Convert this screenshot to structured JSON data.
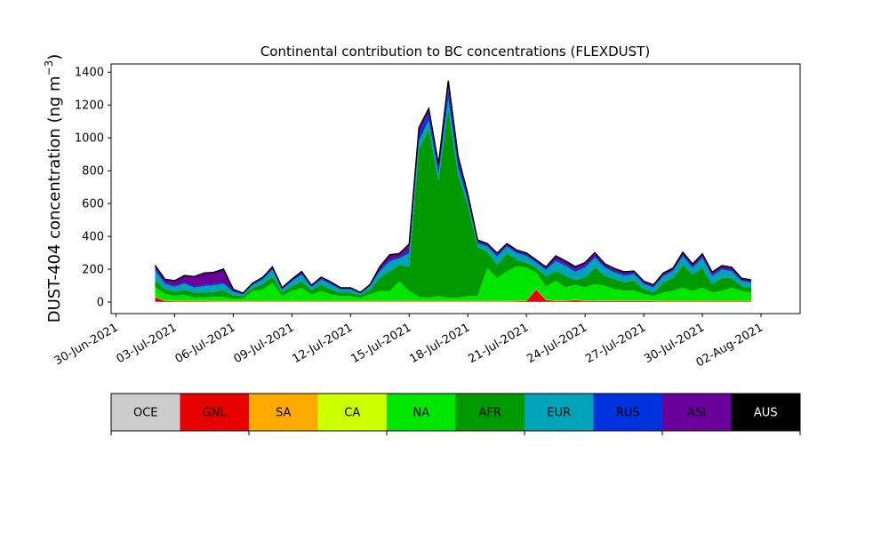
{
  "chart_data": {
    "type": "area",
    "title": "Continental contribution to BC concentrations (FLEXDUST)",
    "ylabel_main": "DUST-404 concentration (ng m",
    "ylabel_exp": "−3",
    "ylabel_close": ")",
    "xlabel": "",
    "ylim": [
      -70,
      1450
    ],
    "yticks": [
      0,
      200,
      400,
      600,
      800,
      1000,
      1200,
      1400
    ],
    "xlim": [
      "2021-06-29T18:00",
      "2021-08-04T00:00"
    ],
    "xtick_labels": [
      "30-Jun-2021",
      "03-Jul-2021",
      "06-Jul-2021",
      "09-Jul-2021",
      "12-Jul-2021",
      "15-Jul-2021",
      "18-Jul-2021",
      "21-Jul-2021",
      "24-Jul-2021",
      "27-Jul-2021",
      "30-Jul-2021",
      "02-Aug-2021"
    ],
    "xtick_dates": [
      "2021-06-30",
      "2021-07-03",
      "2021-07-06",
      "2021-07-09",
      "2021-07-12",
      "2021-07-15",
      "2021-07-18",
      "2021-07-21",
      "2021-07-24",
      "2021-07-27",
      "2021-07-30",
      "2021-08-02"
    ],
    "stacked": true,
    "grid": false,
    "legend_placement": "below",
    "x": [
      "2021-07-02T00:00",
      "2021-07-02T12:00",
      "2021-07-03T00:00",
      "2021-07-03T12:00",
      "2021-07-04T00:00",
      "2021-07-04T12:00",
      "2021-07-05T00:00",
      "2021-07-05T12:00",
      "2021-07-06T00:00",
      "2021-07-06T12:00",
      "2021-07-07T00:00",
      "2021-07-07T12:00",
      "2021-07-08T00:00",
      "2021-07-08T12:00",
      "2021-07-09T00:00",
      "2021-07-09T12:00",
      "2021-07-10T00:00",
      "2021-07-10T12:00",
      "2021-07-11T00:00",
      "2021-07-11T12:00",
      "2021-07-12T00:00",
      "2021-07-12T12:00",
      "2021-07-13T00:00",
      "2021-07-13T12:00",
      "2021-07-14T00:00",
      "2021-07-14T12:00",
      "2021-07-15T00:00",
      "2021-07-15T12:00",
      "2021-07-16T00:00",
      "2021-07-16T12:00",
      "2021-07-17T00:00",
      "2021-07-17T12:00",
      "2021-07-18T00:00",
      "2021-07-18T12:00",
      "2021-07-19T00:00",
      "2021-07-19T12:00",
      "2021-07-20T00:00",
      "2021-07-20T12:00",
      "2021-07-21T00:00",
      "2021-07-21T12:00",
      "2021-07-22T00:00",
      "2021-07-22T12:00",
      "2021-07-23T00:00",
      "2021-07-23T12:00",
      "2021-07-24T00:00",
      "2021-07-24T12:00",
      "2021-07-25T00:00",
      "2021-07-25T12:00",
      "2021-07-26T00:00",
      "2021-07-26T12:00",
      "2021-07-27T00:00",
      "2021-07-27T12:00",
      "2021-07-28T00:00",
      "2021-07-28T12:00",
      "2021-07-29T00:00",
      "2021-07-29T12:00",
      "2021-07-30T00:00",
      "2021-07-30T12:00",
      "2021-07-31T00:00",
      "2021-07-31T12:00",
      "2021-08-01T00:00",
      "2021-08-01T12:00"
    ],
    "series": [
      {
        "name": "OCE",
        "color": "#cccccc",
        "values": [
          2,
          2,
          2,
          2,
          2,
          2,
          2,
          2,
          2,
          2,
          2,
          2,
          2,
          2,
          2,
          2,
          2,
          2,
          2,
          2,
          2,
          2,
          2,
          2,
          2,
          2,
          2,
          2,
          2,
          2,
          2,
          2,
          2,
          2,
          2,
          2,
          2,
          2,
          2,
          2,
          2,
          2,
          2,
          2,
          2,
          2,
          2,
          2,
          2,
          2,
          2,
          2,
          2,
          2,
          2,
          2,
          2,
          2,
          2,
          2,
          2,
          2
        ]
      },
      {
        "name": "GNL",
        "color": "#e60000",
        "values": [
          28,
          5,
          3,
          3,
          3,
          3,
          2,
          2,
          2,
          2,
          2,
          2,
          2,
          2,
          2,
          2,
          2,
          2,
          2,
          2,
          2,
          2,
          2,
          2,
          2,
          2,
          2,
          2,
          2,
          2,
          2,
          2,
          2,
          2,
          2,
          2,
          2,
          3,
          5,
          75,
          10,
          5,
          5,
          10,
          5,
          5,
          5,
          5,
          5,
          5,
          5,
          3,
          3,
          3,
          3,
          3,
          3,
          3,
          3,
          3,
          3,
          3
        ]
      },
      {
        "name": "SA",
        "color": "#ffaa00",
        "values": [
          1,
          1,
          1,
          1,
          1,
          1,
          1,
          1,
          1,
          1,
          1,
          1,
          1,
          1,
          1,
          1,
          1,
          1,
          1,
          1,
          1,
          1,
          1,
          1,
          1,
          1,
          1,
          1,
          1,
          1,
          1,
          1,
          1,
          1,
          1,
          1,
          1,
          1,
          1,
          1,
          1,
          1,
          1,
          1,
          1,
          1,
          1,
          1,
          1,
          1,
          1,
          1,
          1,
          1,
          1,
          1,
          1,
          1,
          1,
          1,
          1,
          1
        ]
      },
      {
        "name": "CA",
        "color": "#ccff00",
        "values": [
          2,
          2,
          2,
          2,
          2,
          2,
          2,
          2,
          2,
          2,
          2,
          2,
          2,
          2,
          2,
          2,
          2,
          2,
          2,
          2,
          2,
          2,
          2,
          2,
          2,
          2,
          2,
          2,
          2,
          2,
          2,
          2,
          2,
          2,
          2,
          2,
          2,
          2,
          2,
          2,
          2,
          2,
          2,
          2,
          2,
          2,
          2,
          2,
          2,
          2,
          2,
          2,
          2,
          2,
          2,
          2,
          2,
          2,
          2,
          2,
          2,
          2
        ]
      },
      {
        "name": "NA",
        "color": "#00e600",
        "values": [
          60,
          40,
          30,
          35,
          20,
          20,
          25,
          25,
          15,
          15,
          60,
          70,
          110,
          30,
          60,
          80,
          40,
          60,
          40,
          30,
          30,
          20,
          40,
          60,
          60,
          120,
          60,
          25,
          20,
          30,
          20,
          20,
          30,
          30,
          200,
          140,
          180,
          210,
          200,
          100,
          80,
          120,
          80,
          90,
          80,
          100,
          90,
          70,
          60,
          60,
          40,
          30,
          50,
          60,
          80,
          60,
          80,
          50,
          60,
          80,
          60,
          50
        ]
      },
      {
        "name": "AFR",
        "color": "#009900",
        "values": [
          40,
          30,
          25,
          30,
          30,
          30,
          30,
          40,
          20,
          15,
          20,
          30,
          40,
          20,
          30,
          40,
          25,
          40,
          30,
          20,
          20,
          15,
          30,
          80,
          120,
          100,
          150,
          900,
          1030,
          700,
          1150,
          750,
          550,
          300,
          100,
          80,
          110,
          40,
          30,
          30,
          60,
          60,
          70,
          30,
          60,
          100,
          60,
          60,
          50,
          60,
          30,
          20,
          60,
          80,
          140,
          100,
          120,
          50,
          80,
          60,
          30,
          30
        ]
      },
      {
        "name": "EUR",
        "color": "#00a3b8",
        "values": [
          60,
          30,
          30,
          40,
          30,
          40,
          40,
          40,
          20,
          10,
          20,
          30,
          40,
          20,
          30,
          40,
          20,
          30,
          30,
          20,
          20,
          10,
          20,
          40,
          60,
          40,
          80,
          50,
          50,
          40,
          60,
          40,
          30,
          20,
          30,
          50,
          40,
          40,
          40,
          30,
          40,
          60,
          60,
          50,
          60,
          60,
          50,
          40,
          40,
          40,
          30,
          30,
          40,
          40,
          50,
          40,
          60,
          50,
          50,
          40,
          30,
          30
        ]
      },
      {
        "name": "RUS",
        "color": "#0033dd",
        "values": [
          10,
          8,
          6,
          8,
          6,
          8,
          8,
          8,
          5,
          3,
          4,
          6,
          8,
          5,
          6,
          8,
          5,
          6,
          6,
          4,
          4,
          3,
          4,
          8,
          10,
          8,
          15,
          40,
          40,
          30,
          60,
          40,
          20,
          10,
          8,
          10,
          8,
          8,
          8,
          6,
          8,
          10,
          10,
          10,
          10,
          10,
          8,
          8,
          8,
          8,
          6,
          6,
          8,
          8,
          10,
          8,
          10,
          8,
          8,
          8,
          6,
          6
        ]
      },
      {
        "name": "ASI",
        "color": "#6a0099",
        "values": [
          20,
          20,
          30,
          40,
          60,
          70,
          70,
          80,
          10,
          3,
          4,
          6,
          8,
          4,
          6,
          10,
          5,
          8,
          8,
          5,
          5,
          3,
          5,
          20,
          30,
          20,
          40,
          40,
          30,
          30,
          50,
          30,
          20,
          10,
          10,
          10,
          10,
          10,
          10,
          10,
          10,
          20,
          20,
          20,
          20,
          20,
          15,
          15,
          15,
          10,
          10,
          10,
          10,
          10,
          15,
          15,
          15,
          15,
          15,
          15,
          10,
          10
        ]
      },
      {
        "name": "AUS",
        "color": "#000000",
        "values": [
          1,
          1,
          1,
          1,
          1,
          1,
          1,
          1,
          1,
          1,
          1,
          1,
          1,
          1,
          1,
          1,
          1,
          1,
          1,
          1,
          1,
          1,
          1,
          1,
          1,
          1,
          1,
          1,
          1,
          1,
          1,
          1,
          1,
          1,
          1,
          1,
          1,
          1,
          1,
          1,
          1,
          1,
          1,
          1,
          1,
          1,
          1,
          1,
          1,
          1,
          1,
          1,
          1,
          1,
          1,
          1,
          1,
          1,
          1,
          1,
          1,
          1
        ]
      }
    ],
    "legend": [
      {
        "name": "OCE",
        "color": "#cccccc",
        "text_color": "#000000"
      },
      {
        "name": "GNL",
        "color": "#e60000",
        "text_color": "#000000"
      },
      {
        "name": "SA",
        "color": "#ffaa00",
        "text_color": "#000000"
      },
      {
        "name": "CA",
        "color": "#ccff00",
        "text_color": "#000000"
      },
      {
        "name": "NA",
        "color": "#00e600",
        "text_color": "#000000"
      },
      {
        "name": "AFR",
        "color": "#009900",
        "text_color": "#000000"
      },
      {
        "name": "EUR",
        "color": "#00a3b8",
        "text_color": "#000000"
      },
      {
        "name": "RUS",
        "color": "#0033dd",
        "text_color": "#000000"
      },
      {
        "name": "ASI",
        "color": "#6a0099",
        "text_color": "#000000"
      },
      {
        "name": "AUS",
        "color": "#000000",
        "text_color": "#ffffff"
      }
    ]
  }
}
